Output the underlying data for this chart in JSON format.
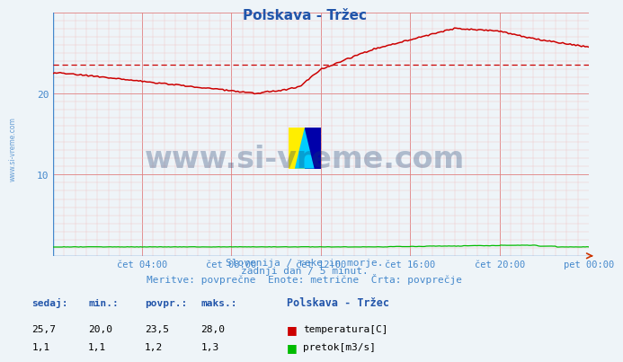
{
  "title": "Polskava - Tržec",
  "fig_bg_color": "#eef4f8",
  "plot_bg_color": "#eef4f8",
  "grid_color": "#e08080",
  "grid_minor_color": "#f0c8c8",
  "title_color": "#2255aa",
  "axis_label_color": "#4488cc",
  "text_color": "#4488cc",
  "ylim": [
    0,
    30
  ],
  "ytick_major": [
    0,
    10,
    20,
    30
  ],
  "ytick_labels": [
    "",
    "10",
    "20",
    ""
  ],
  "avg_line_value": 23.5,
  "avg_line_color": "#cc0000",
  "temp_line_color": "#cc0000",
  "flow_line_color": "#00bb00",
  "watermark_text": "www.si-vreme.com",
  "watermark_color": "#1a3a6b",
  "watermark_alpha": 0.3,
  "subtitle1": "Slovenija / reke in morje.",
  "subtitle2": "zadnji dan / 5 minut.",
  "subtitle3": "Meritve: povprečne  Enote: metrične  Črta: povprečje",
  "footer_label1": "sedaj:",
  "footer_label2": "min.:",
  "footer_label3": "povpr.:",
  "footer_label4": "maks.:",
  "footer_val1_temp": "25,7",
  "footer_val2_temp": "20,0",
  "footer_val3_temp": "23,5",
  "footer_val4_temp": "28,0",
  "footer_val1_flow": "1,1",
  "footer_val2_flow": "1,1",
  "footer_val3_flow": "1,2",
  "footer_val4_flow": "1,3",
  "legend_title": "Polskava - Tržec",
  "legend_temp": "temperatura[C]",
  "legend_flow": "pretok[m3/s]",
  "xlabel_labels": [
    "",
    "čet 04:00",
    "čet 08:00",
    "čet 12:00",
    "čet 16:00",
    "čet 20:00",
    "pet 00:00"
  ],
  "n_points": 288
}
